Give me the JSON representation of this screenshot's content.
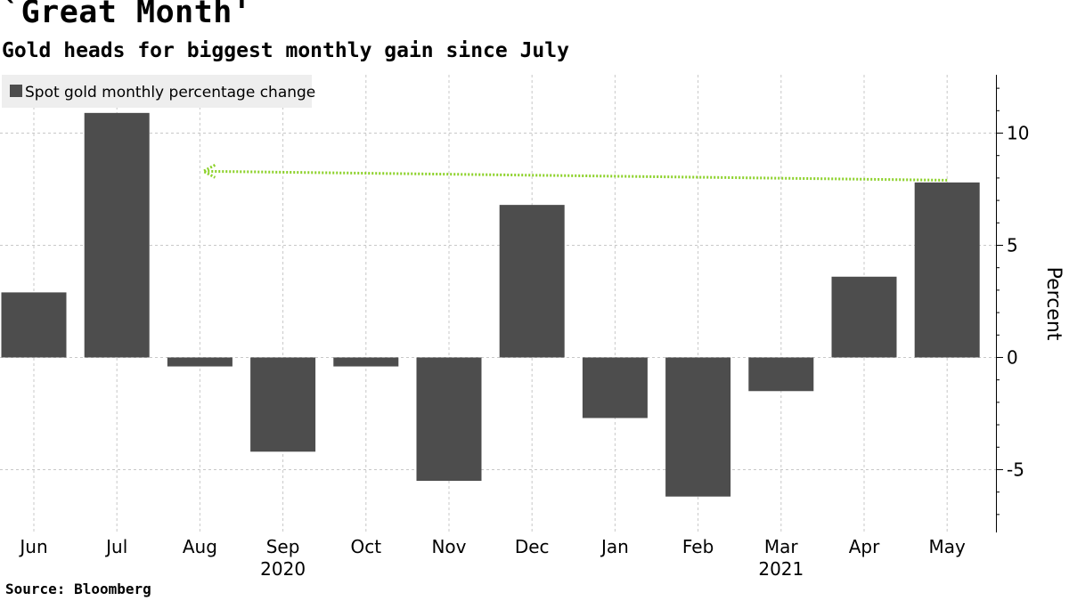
{
  "header": {
    "title": "`Great Month'",
    "subtitle": "Gold heads for biggest monthly gain since July"
  },
  "footer": {
    "source": "Source: Bloomberg"
  },
  "colors": {
    "bar": "#4d4d4d",
    "annotation_arrow": "#8cd129",
    "grid": "#c8c8c8",
    "legend_bg": "#eeeeee"
  },
  "chart_data": {
    "type": "bar",
    "categories": [
      "Jun",
      "Jul",
      "Aug",
      "Sep",
      "Oct",
      "Nov",
      "Dec",
      "Jan",
      "Feb",
      "Mar",
      "Apr",
      "May"
    ],
    "year_labels": [
      {
        "label": "2020",
        "category": "Sep"
      },
      {
        "label": "2021",
        "category": "Mar"
      }
    ],
    "series": [
      {
        "name": "Spot gold monthly percentage change",
        "values": [
          2.9,
          10.9,
          -0.4,
          -4.2,
          -0.4,
          -5.5,
          6.8,
          -2.7,
          -6.2,
          -1.5,
          3.6,
          7.8
        ]
      }
    ],
    "ylabel": "Percent",
    "ylim": [
      -7.8,
      12.6
    ],
    "yticks": [
      -5,
      0,
      5,
      10
    ],
    "grid": true,
    "legend_position": "top-left",
    "annotation": {
      "type": "arrow",
      "from_category": "May",
      "to_category": "Aug",
      "from_value": 7.9,
      "to_value": 8.3
    }
  }
}
